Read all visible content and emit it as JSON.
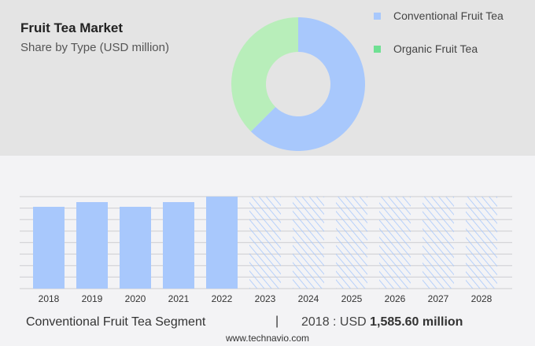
{
  "header": {
    "title": "Fruit Tea Market",
    "subtitle": "Share by Type (USD million)"
  },
  "chart_data": [
    {
      "type": "pie",
      "variant": "donut",
      "slices": [
        {
          "name": "Conventional Fruit Tea",
          "share": 62.5,
          "color": "#a8c8fc"
        },
        {
          "name": "Organic Fruit Tea",
          "share": 37.5,
          "color": "#b8eeba"
        }
      ],
      "legend": {
        "placement": "top-right",
        "entries": [
          {
            "label": "Conventional Fruit Tea",
            "color": "#a8c8fc"
          },
          {
            "label": "Organic Fruit Tea",
            "color": "#6fe093"
          }
        ]
      }
    },
    {
      "type": "bar",
      "categories": [
        "2018",
        "2019",
        "2020",
        "2021",
        "2022",
        "2023",
        "2024",
        "2025",
        "2026",
        "2027",
        "2028"
      ],
      "values": [
        1585.6,
        1677,
        1586,
        1677,
        1784,
        null,
        null,
        null,
        null,
        null,
        null
      ],
      "forecast_from": "2023",
      "color": "#a8c8fc",
      "grid": true
    }
  ],
  "footer": {
    "segment": "Conventional Fruit Tea Segment",
    "separator": "|",
    "year_label": "2018 : USD ",
    "value": "1,585.60 million",
    "site": "www.technavio.com"
  }
}
